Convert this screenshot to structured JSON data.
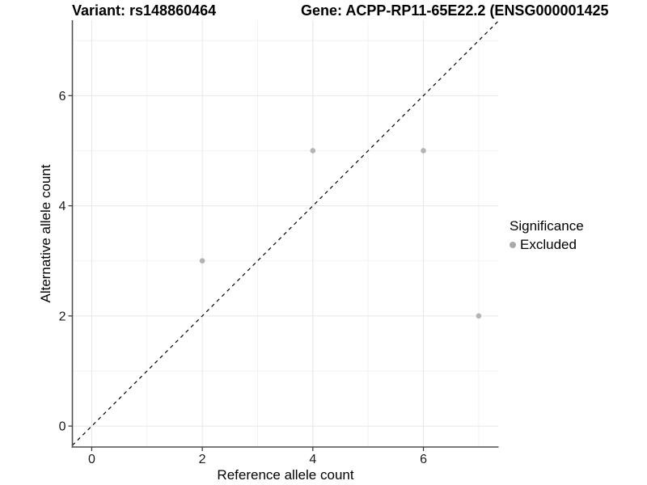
{
  "chart_data": {
    "type": "scatter",
    "title_left": "Variant: rs148860464",
    "title_right": "Gene: ACPP-RP11-65E22.2 (ENSG000001425",
    "xlabel": "Reference allele count",
    "ylabel": "Alternative allele count",
    "x_ticks": [
      0,
      2,
      4,
      6
    ],
    "y_ticks": [
      0,
      2,
      4,
      6
    ],
    "x_minor": [
      1,
      3,
      5,
      7
    ],
    "y_minor": [
      1,
      3,
      5,
      7
    ],
    "xlim": [
      -0.35,
      7.36
    ],
    "ylim": [
      -0.38,
      7.37
    ],
    "grid": true,
    "legend_position": "right",
    "identity_line": {
      "style": "dashed",
      "slope": 1,
      "intercept": 0,
      "color": "#000000"
    },
    "series": [
      {
        "name": "Excluded",
        "color": "#b3b3b3",
        "points": [
          [
            2,
            3
          ],
          [
            4,
            5
          ],
          [
            6,
            5
          ],
          [
            7,
            2
          ]
        ]
      }
    ],
    "legend": {
      "title": "Significance",
      "items": [
        {
          "label": "Excluded",
          "color": "#aaaaaa"
        }
      ]
    },
    "colors": {
      "background": "#ffffff",
      "grid_major": "#e6e6e6",
      "grid_minor": "#f2f2f2",
      "axis_line": "#4f4f4f",
      "tick_mark": "#333333",
      "tick_label": "#1a1a1a"
    }
  }
}
